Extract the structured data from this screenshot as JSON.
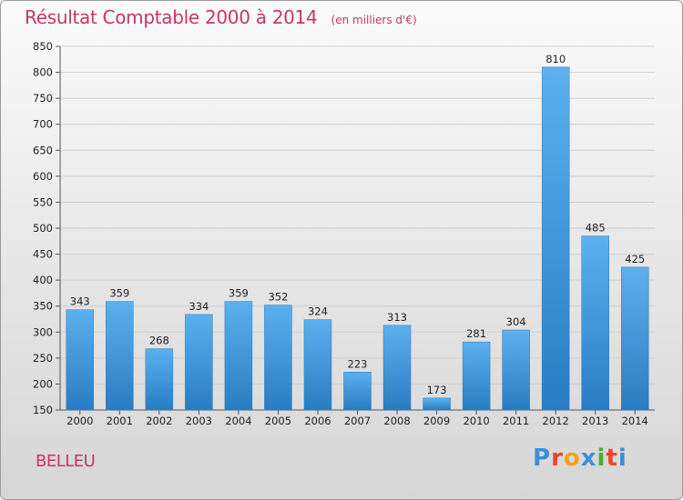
{
  "chart_data": {
    "type": "bar",
    "title": "Résultat Comptable 2000 à 2014",
    "subtitle": "(en milliers d'€)",
    "categories": [
      "2000",
      "2001",
      "2002",
      "2003",
      "2004",
      "2005",
      "2006",
      "2007",
      "2008",
      "2009",
      "2010",
      "2011",
      "2012",
      "2013",
      "2014"
    ],
    "values": [
      343,
      359,
      268,
      334,
      359,
      352,
      324,
      223,
      313,
      173,
      281,
      304,
      810,
      485,
      425
    ],
    "ylim": [
      150,
      850
    ],
    "yticks": [
      150,
      200,
      250,
      300,
      350,
      400,
      450,
      500,
      550,
      600,
      650,
      700,
      750,
      800,
      850
    ],
    "grid": true,
    "xlabel": "",
    "ylabel": "",
    "bar_color": "#3a8fd6"
  },
  "footer": {
    "town": "BELLEU",
    "brand": [
      "P",
      "r",
      "o",
      "x",
      "i",
      "t",
      "i"
    ],
    "brand_colors": [
      "#3b8fd9",
      "#e8472a",
      "#f2a21b",
      "#3b8fd9",
      "#4cae3c",
      "#e8472a",
      "#3b8fd9"
    ]
  }
}
